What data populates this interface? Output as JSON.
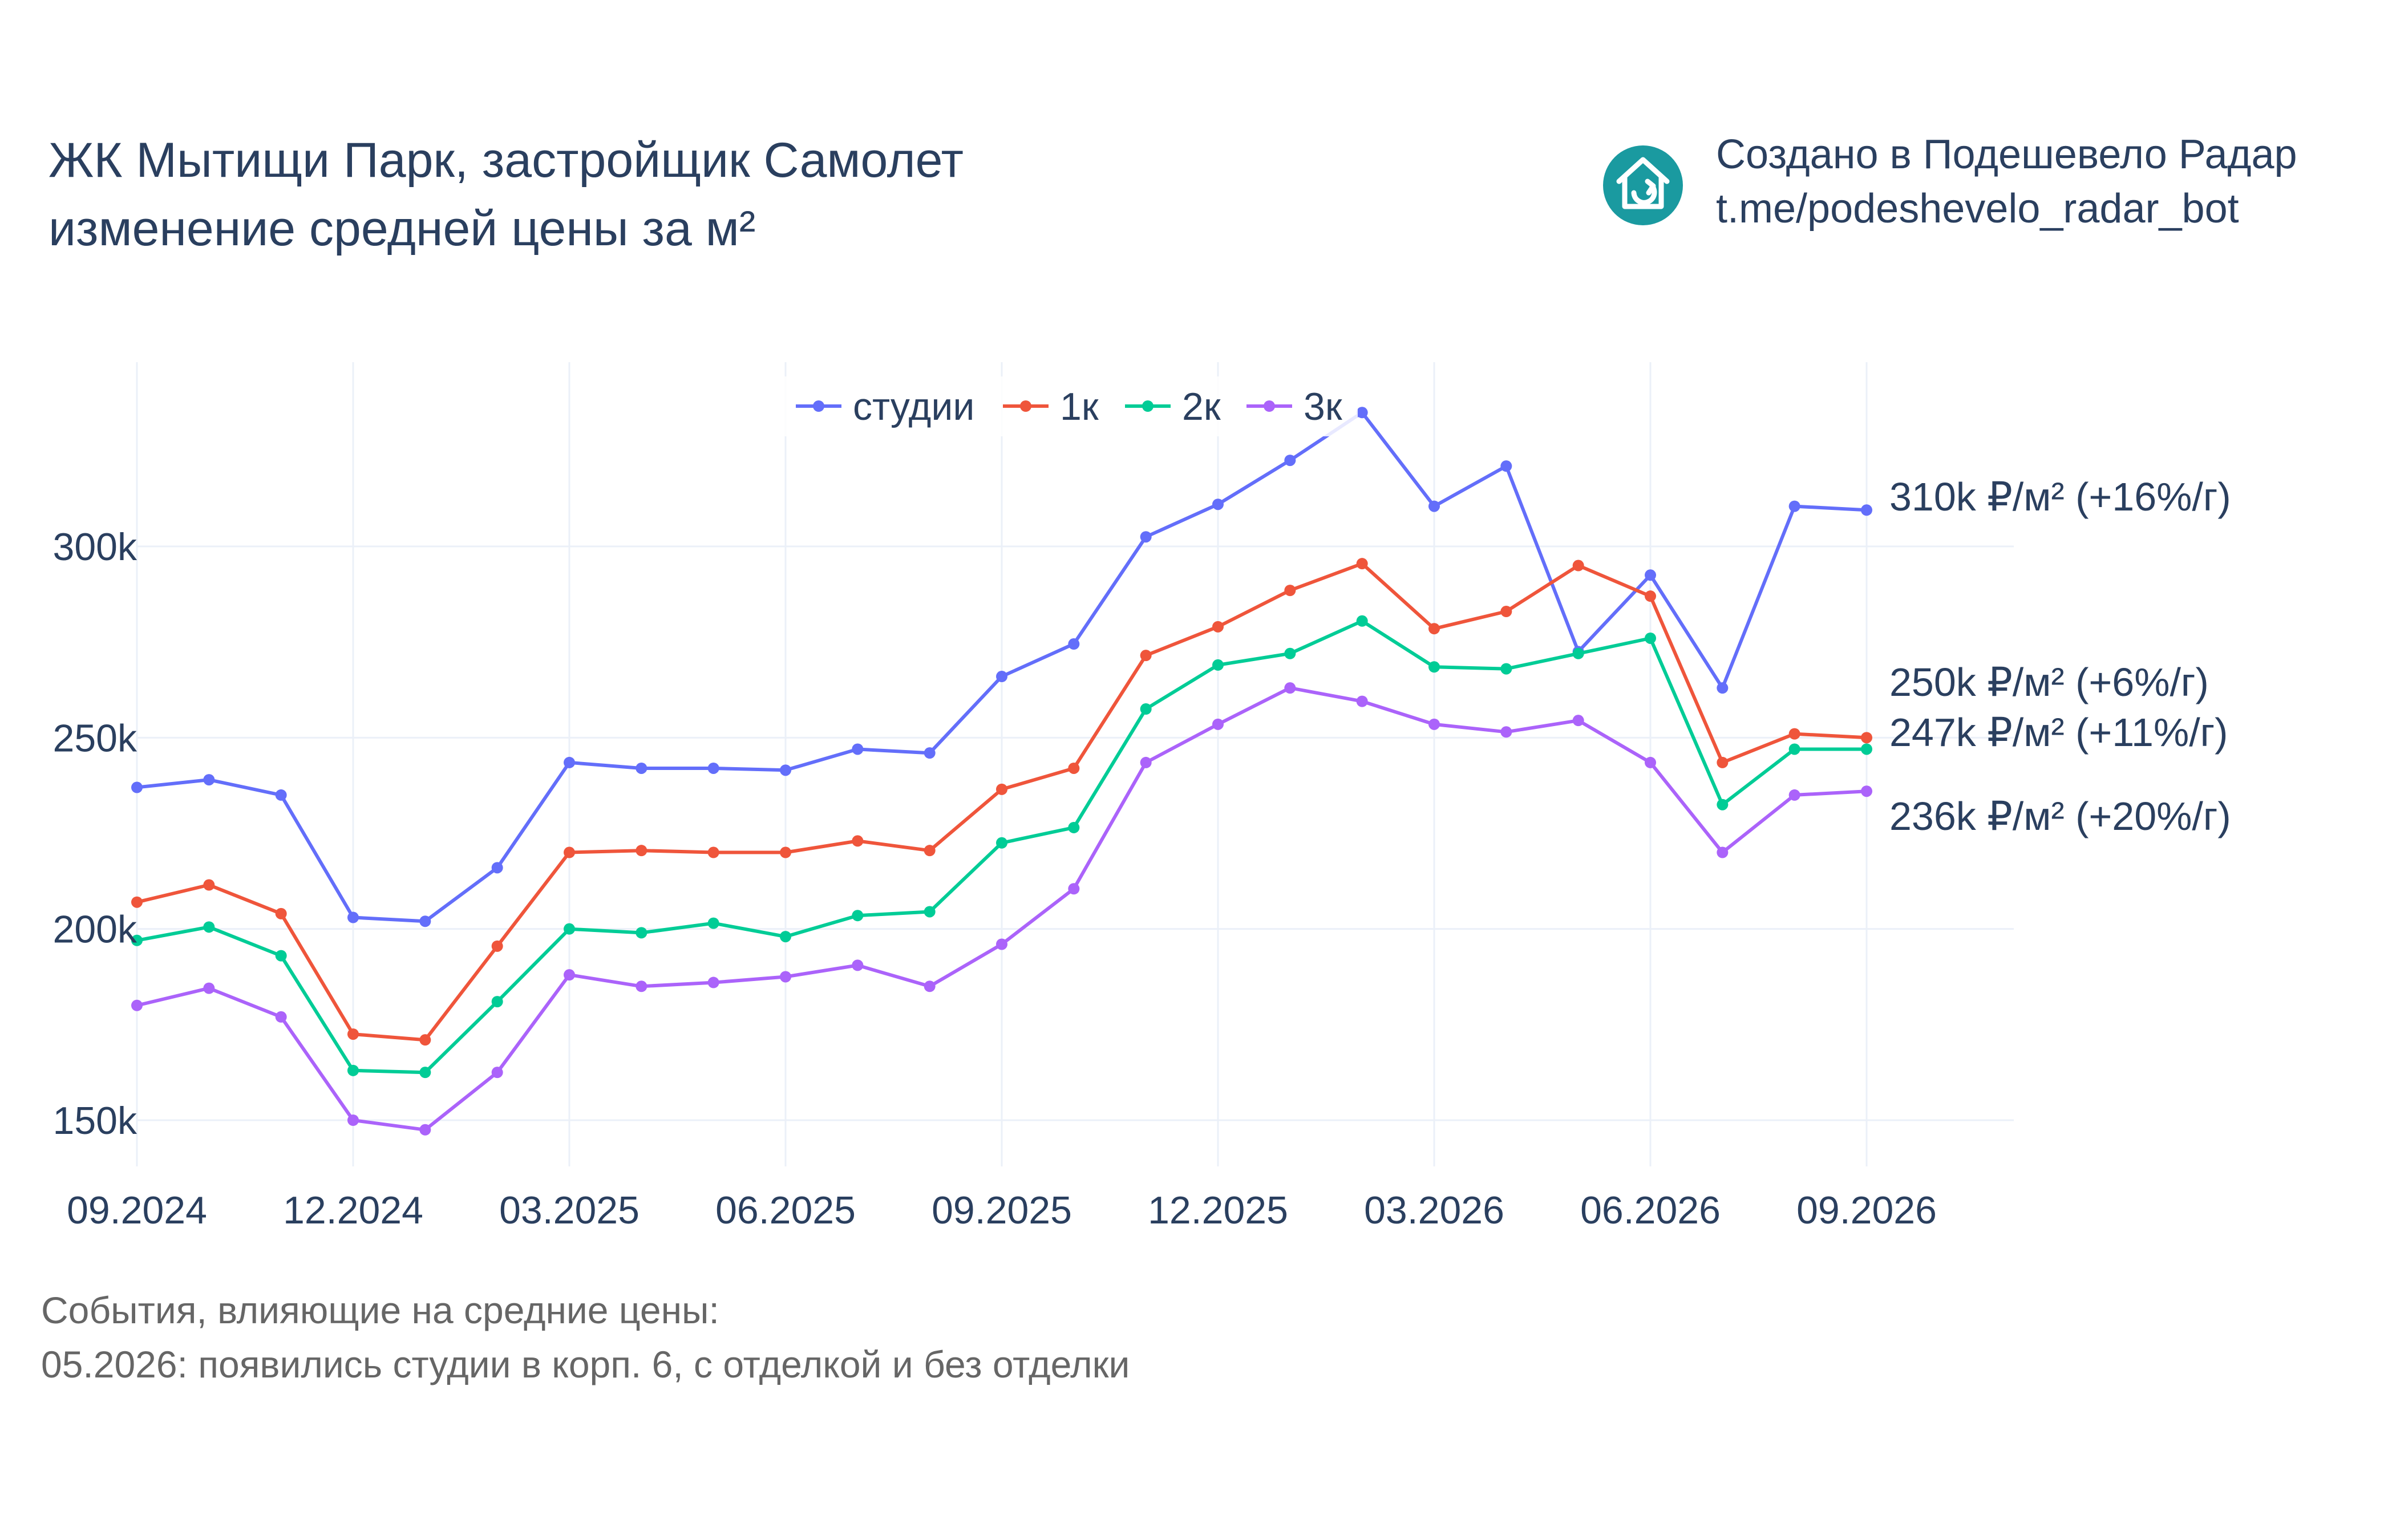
{
  "header": {
    "title_line1": "ЖК Мытищи Парк, застройщик Самолет",
    "title_line2": "изменение средней цены за м²"
  },
  "credit": {
    "line1": "Создано в Подешевело Радар",
    "line2": "t.me/podeshevelo_radar_bot",
    "logo_color": "#1a9aa0",
    "logo_icon": "house-arrow-icon"
  },
  "footer": {
    "line1": "События, влияющие на средние цены:",
    "line2": "05.2026: появились студии в корп. 6, с отделкой и без отделки"
  },
  "chart_data": {
    "type": "line",
    "x": [
      "09.2024",
      "10.2024",
      "11.2024",
      "12.2024",
      "01.2025",
      "02.2025",
      "03.2025",
      "04.2025",
      "05.2025",
      "06.2025",
      "07.2025",
      "08.2025",
      "09.2025",
      "10.2025",
      "11.2025",
      "12.2025",
      "01.2026",
      "02.2026",
      "03.2026",
      "04.2026",
      "05.2026",
      "06.2026",
      "07.2026",
      "08.2026",
      "09.2026"
    ],
    "x_tick_labels": [
      "09.2024",
      "12.2024",
      "03.2025",
      "06.2025",
      "09.2025",
      "12.2025",
      "03.2026",
      "06.2026",
      "09.2026"
    ],
    "y_tick_labels": [
      "150k",
      "200k",
      "250k",
      "300k"
    ],
    "y_ticks": [
      150000,
      200000,
      250000,
      300000
    ],
    "ylim": [
      135000,
      350000
    ],
    "grid": true,
    "legend_position": "top-center",
    "series": [
      {
        "name": "студии",
        "color": "#636efa",
        "values": [
          237000,
          239000,
          235000,
          203000,
          202000,
          216000,
          243500,
          242000,
          242000,
          241500,
          247000,
          246000,
          266000,
          274500,
          302500,
          311000,
          322500,
          335000,
          310500,
          321000,
          272500,
          292500,
          263000,
          310500,
          309500
        ],
        "end_label": "310k ₽/м² (+16%/г)"
      },
      {
        "name": "1к",
        "color": "#ef553b",
        "values": [
          207000,
          211500,
          204000,
          172500,
          171000,
          195500,
          220000,
          220500,
          220000,
          220000,
          223000,
          220500,
          236500,
          242000,
          271500,
          279000,
          288500,
          295500,
          278500,
          283000,
          295000,
          287000,
          243500,
          251000,
          250000
        ],
        "end_label": "250k ₽/м² (+6%/г)"
      },
      {
        "name": "2к",
        "color": "#00cc96",
        "values": [
          197000,
          200500,
          193000,
          163000,
          162500,
          181000,
          200000,
          199000,
          201500,
          198000,
          203500,
          204500,
          222500,
          226500,
          257500,
          269000,
          272000,
          280500,
          268500,
          268000,
          272000,
          276000,
          232500,
          247000,
          247000
        ],
        "end_label": "247k ₽/м² (+11%/г)"
      },
      {
        "name": "3к",
        "color": "#ab63fa",
        "values": [
          180000,
          184500,
          177000,
          150000,
          147500,
          162500,
          188000,
          185000,
          186000,
          187500,
          190500,
          185000,
          196000,
          210500,
          243500,
          253500,
          263000,
          259500,
          253500,
          251500,
          254500,
          243500,
          220000,
          235000,
          236000
        ],
        "end_label": "236k ₽/м² (+20%/г)"
      }
    ]
  }
}
